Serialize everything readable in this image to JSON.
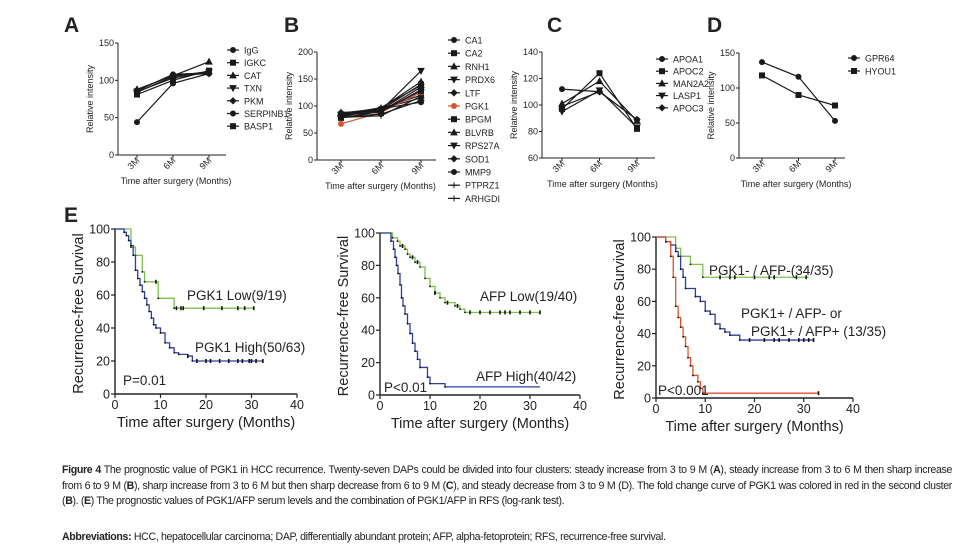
{
  "panel_letters": [
    "A",
    "B",
    "C",
    "D",
    "E"
  ],
  "colors": {
    "green": "#7dbf4c",
    "blue": "#2c3e9e",
    "red": "#e0512b",
    "pgk1_red": "#d9532c",
    "black": "#1a1a1a"
  },
  "chart_data": [
    {
      "type": "line",
      "panel": "A",
      "ylabel": "Relative intensity",
      "xlabel": "Time after surgery (Months)",
      "categories": [
        "3M",
        "6M",
        "9M"
      ],
      "ylim": [
        0,
        150
      ],
      "yticks": [
        0,
        50,
        100,
        150
      ],
      "series": [
        {
          "name": "IgG",
          "values": [
            86,
            108,
            110
          ]
        },
        {
          "name": "IGKC",
          "values": [
            84,
            105,
            112
          ]
        },
        {
          "name": "CAT",
          "values": [
            88,
            106,
            125
          ]
        },
        {
          "name": "TXN",
          "values": [
            85,
            103,
            111
          ]
        },
        {
          "name": "PKM",
          "values": [
            87,
            107,
            109
          ]
        },
        {
          "name": "SERPINB1",
          "values": [
            44,
            96,
            109
          ]
        },
        {
          "name": "BASP1",
          "values": [
            81,
            100,
            113
          ]
        }
      ]
    },
    {
      "type": "line",
      "panel": "B",
      "ylabel": "Relative intensity",
      "xlabel": "Time after surgery (Months)",
      "categories": [
        "3M",
        "6M",
        "9M"
      ],
      "ylim": [
        0,
        200
      ],
      "yticks": [
        0,
        50,
        100,
        150,
        200
      ],
      "series": [
        {
          "name": "CA1",
          "values": [
            85,
            95,
            120
          ]
        },
        {
          "name": "CA2",
          "values": [
            82,
            93,
            140
          ]
        },
        {
          "name": "RNH1",
          "values": [
            88,
            90,
            135
          ]
        },
        {
          "name": "PRDX6",
          "values": [
            84,
            92,
            165
          ]
        },
        {
          "name": "LTF",
          "values": [
            80,
            95,
            115
          ]
        },
        {
          "name": "PGK1",
          "values": [
            67,
            88,
            125
          ],
          "highlight": true
        },
        {
          "name": "BPGM",
          "values": [
            78,
            90,
            128
          ]
        },
        {
          "name": "BLVRB",
          "values": [
            86,
            96,
            145
          ]
        },
        {
          "name": "RPS27A",
          "values": [
            83,
            89,
            130
          ]
        },
        {
          "name": "SOD1",
          "values": [
            80,
            85,
            110
          ]
        },
        {
          "name": "MMP9",
          "values": [
            87,
            95,
            107
          ]
        },
        {
          "name": "PTPRZ1",
          "values": [
            84,
            97,
            138
          ]
        },
        {
          "name": "ARHGDI",
          "values": [
            79,
            82,
            118
          ]
        }
      ]
    },
    {
      "type": "line",
      "panel": "C",
      "ylabel": "Relative intensity",
      "xlabel": "Time after surgery (Months)",
      "categories": [
        "3M",
        "6M",
        "9M"
      ],
      "ylim": [
        60,
        140
      ],
      "yticks": [
        60,
        80,
        100,
        120,
        140
      ],
      "series": [
        {
          "name": "APOA1",
          "values": [
            112,
            110,
            89
          ]
        },
        {
          "name": "APOC2",
          "values": [
            97,
            124,
            82
          ]
        },
        {
          "name": "MAN2A2",
          "values": [
            101,
            118,
            88
          ]
        },
        {
          "name": "LASP1",
          "values": [
            95,
            111,
            83
          ]
        },
        {
          "name": "APOC3",
          "values": [
            99,
            110,
            89
          ]
        }
      ]
    },
    {
      "type": "line",
      "panel": "D",
      "ylabel": "Relative intensity",
      "xlabel": "Time after surgery (Months)",
      "categories": [
        "3M",
        "6M",
        "9M"
      ],
      "ylim": [
        0,
        150
      ],
      "yticks": [
        0,
        50,
        100,
        150
      ],
      "series": [
        {
          "name": "GPR64",
          "values": [
            137,
            116,
            53
          ]
        },
        {
          "name": "HYOU1",
          "values": [
            118,
            90,
            75
          ]
        }
      ]
    },
    {
      "type": "line",
      "subtype": "kaplan-meier",
      "panel": "E1",
      "ylabel": "Recurrence-free Survival",
      "xlabel": "Time after surgery (Months)",
      "xlim": [
        0,
        40
      ],
      "ylim": [
        0,
        100
      ],
      "xticks": [
        0,
        10,
        20,
        30,
        40
      ],
      "yticks": [
        0,
        20,
        40,
        60,
        80,
        100
      ],
      "pvalue": "P=0.01",
      "series": [
        {
          "name": "PGK1 Low(9/19)",
          "color": "green",
          "steps": [
            [
              3.5,
              89
            ],
            [
              4.5,
              84
            ],
            [
              6,
              74
            ],
            [
              6.5,
              68
            ],
            [
              9.5,
              58
            ],
            [
              13,
              52
            ]
          ],
          "end": 30.5,
          "censored": [
            9,
            13.5,
            14.5,
            15,
            19.5,
            23.5,
            27,
            28.5,
            30.5
          ]
        },
        {
          "name": "PGK1 High(50/63)",
          "color": "blue",
          "steps": [
            [
              2,
              98
            ],
            [
              2.5,
              96
            ],
            [
              3,
              93
            ],
            [
              3.5,
              90
            ],
            [
              4,
              84
            ],
            [
              4.5,
              75
            ],
            [
              5,
              70
            ],
            [
              5.5,
              66
            ],
            [
              6,
              62
            ],
            [
              6.5,
              58
            ],
            [
              7,
              54
            ],
            [
              7.5,
              50
            ],
            [
              8,
              46
            ],
            [
              8.5,
              42
            ],
            [
              9,
              40
            ],
            [
              10,
              37
            ],
            [
              11,
              31
            ],
            [
              12,
              28
            ],
            [
              13,
              25
            ],
            [
              14,
              24
            ],
            [
              16,
              23
            ],
            [
              17,
              20
            ]
          ],
          "end": 32.5,
          "censored": [
            16,
            18,
            20,
            21,
            23,
            25,
            27,
            28,
            29.5,
            30,
            31,
            32.5
          ]
        }
      ]
    },
    {
      "type": "line",
      "subtype": "kaplan-meier",
      "panel": "E2",
      "ylabel": "Recurrence-free Survival",
      "xlabel": "Time after surgery (Months)",
      "xlim": [
        0,
        40
      ],
      "ylim": [
        0,
        100
      ],
      "xticks": [
        0,
        10,
        20,
        30,
        40
      ],
      "yticks": [
        0,
        20,
        40,
        60,
        80,
        100
      ],
      "pvalue": "P<0.01",
      "series": [
        {
          "name": "AFP Low(19/40)",
          "color": "green",
          "steps": [
            [
              2.5,
              97
            ],
            [
              3.5,
              95
            ],
            [
              4,
              92
            ],
            [
              5,
              90
            ],
            [
              5.5,
              87
            ],
            [
              6,
              85
            ],
            [
              7,
              82
            ],
            [
              8,
              79
            ],
            [
              9,
              72
            ],
            [
              10,
              67
            ],
            [
              11,
              63
            ],
            [
              12,
              60
            ],
            [
              13,
              57
            ],
            [
              15,
              55
            ],
            [
              16,
              53
            ],
            [
              17,
              51
            ]
          ],
          "end": 32,
          "censored": [
            4.5,
            6.5,
            7.5,
            11,
            13.5,
            15.5,
            18,
            20,
            22,
            24,
            25,
            26,
            28,
            30,
            32
          ]
        },
        {
          "name": "AFP High(40/42)",
          "color": "blue",
          "steps": [
            [
              2.2,
              95
            ],
            [
              2.7,
              90
            ],
            [
              3,
              85
            ],
            [
              3.3,
              80
            ],
            [
              3.6,
              75
            ],
            [
              4,
              68
            ],
            [
              4.3,
              60
            ],
            [
              4.6,
              55
            ],
            [
              5,
              50
            ],
            [
              5.5,
              44
            ],
            [
              6,
              38
            ],
            [
              6.5,
              32
            ],
            [
              7,
              27
            ],
            [
              7.5,
              22
            ],
            [
              8,
              17
            ],
            [
              9.5,
              11
            ],
            [
              10,
              7
            ],
            [
              13,
              5
            ]
          ],
          "end": 32,
          "censored": []
        }
      ]
    },
    {
      "type": "line",
      "subtype": "kaplan-meier",
      "panel": "E3",
      "ylabel": "Recurrence-free Survival",
      "xlabel": "Time after surgery (Months)",
      "xlim": [
        0,
        40
      ],
      "ylim": [
        0,
        100
      ],
      "xticks": [
        0,
        10,
        20,
        30,
        40
      ],
      "yticks": [
        0,
        20,
        40,
        60,
        80,
        100
      ],
      "pvalue": "P<0.001",
      "series": [
        {
          "name": "PGK1- / AFP-(34/35)",
          "color": "green",
          "steps": [
            [
              4,
              93
            ],
            [
              5,
              88
            ],
            [
              7,
              83
            ],
            [
              9.5,
              75
            ]
          ],
          "end": 31,
          "censored": [
            13,
            15,
            16,
            20,
            23,
            24,
            28.5,
            30.5
          ]
        },
        {
          "name": "PGK1+ / AFP- or PGK1+ / AFP+ (13/35)",
          "label_lines": [
            "PGK1+ / AFP- or",
            "PGK1+ / AFP+ (13/35)"
          ],
          "color": "blue",
          "steps": [
            [
              2,
              97
            ],
            [
              3,
              95
            ],
            [
              4,
              91
            ],
            [
              4.5,
              88
            ],
            [
              5,
              80
            ],
            [
              5.5,
              75
            ],
            [
              6,
              68
            ],
            [
              8,
              63
            ],
            [
              9,
              60
            ],
            [
              10,
              54
            ],
            [
              11,
              52
            ],
            [
              12,
              46
            ],
            [
              13,
              43
            ],
            [
              14,
              41
            ],
            [
              15,
              39
            ],
            [
              17,
              36
            ]
          ],
          "end": 32,
          "censored": [
            19,
            22,
            24,
            25,
            27,
            29,
            30,
            31,
            32
          ]
        },
        {
          "name": "PGK1+ / AFP+",
          "color": "red",
          "unlabeled": true,
          "steps": [
            [
              2,
              97
            ],
            [
              3,
              88
            ],
            [
              3.5,
              75
            ],
            [
              4,
              57
            ],
            [
              4.5,
              50
            ],
            [
              5,
              44
            ],
            [
              5.5,
              38
            ],
            [
              6,
              32
            ],
            [
              6.5,
              25
            ],
            [
              7,
              20
            ],
            [
              7.5,
              14
            ],
            [
              8.5,
              10
            ],
            [
              9,
              6
            ],
            [
              9.5,
              3
            ]
          ],
          "end": 33,
          "censored": [
            33
          ]
        }
      ]
    }
  ],
  "caption": {
    "segments": [
      {
        "t": "Figure 4",
        "b": true
      },
      {
        "t": " The prognostic value of PGK1 in HCC recurrence. Twenty-seven DAPs could be divided into four clusters: steady increase from 3 to 9 M ("
      },
      {
        "t": "A",
        "b": true
      },
      {
        "t": "), steady increase from 3 to 6 M then sharp increase from 6 to 9 M ("
      },
      {
        "t": "B",
        "b": true
      },
      {
        "t": "), sharp increase from 3 to 6 M but then sharp decrease from 6 to 9 M ("
      },
      {
        "t": "C",
        "b": true
      },
      {
        "t": "), and steady decrease from 3 to 9 M (D). The fold change curve of PGK1 was colored in red in the second cluster ("
      },
      {
        "t": "B",
        "b": true
      },
      {
        "t": "). ("
      },
      {
        "t": "E",
        "b": true
      },
      {
        "t": ") The prognostic values of PGK1/AFP serum levels and the combination of PGK1/AFP in RFS (log-rank test)."
      }
    ],
    "abbrev_label": "Abbreviations:",
    "abbrev_text": " HCC, hepatocellular carcinoma; DAP, differentially abundant protein; AFP, alpha-fetoprotein; RFS, recurrence-free survival."
  }
}
